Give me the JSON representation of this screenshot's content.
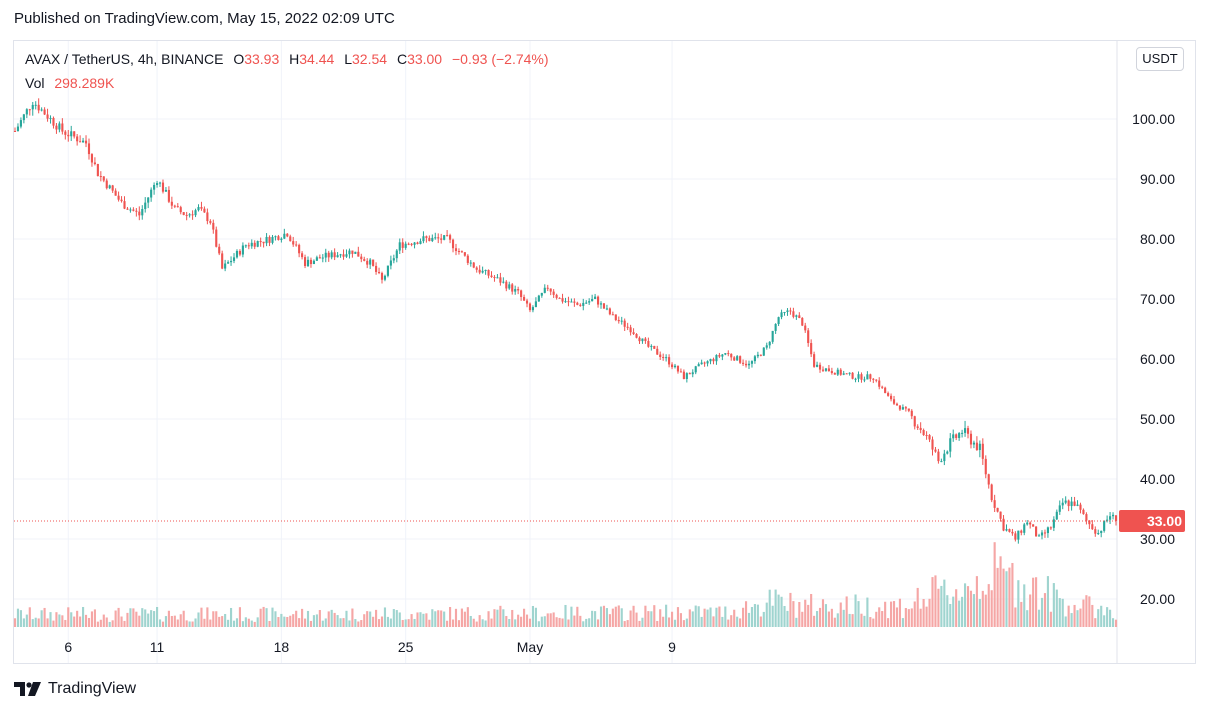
{
  "header": {
    "published_text": "Published on TradingView.com, May 15, 2022 02:09 UTC"
  },
  "legend": {
    "symbol": "AVAX / TetherUS, 4h, BINANCE",
    "open_label": "O",
    "open_value": "33.93",
    "high_label": "H",
    "high_value": "34.44",
    "low_label": "L",
    "low_value": "32.54",
    "close_label": "C",
    "close_value": "33.00",
    "change": "−0.93 (−2.74%)",
    "volume_label": "Vol",
    "volume_value": "298.289K"
  },
  "currency_button": "USDT",
  "price_badge": "33.00",
  "footer": {
    "brand": "TradingView"
  },
  "colors": {
    "up": "#26a69a",
    "down": "#ef5350",
    "vol_up": "#9fd4cf",
    "vol_down": "#f5a6a5",
    "grid": "#f0f3fa",
    "text": "#131722"
  },
  "chart_data": {
    "type": "candlestick",
    "y_axis": {
      "ticks": [
        "100.00",
        "90.00",
        "80.00",
        "70.00",
        "60.00",
        "50.00",
        "40.00",
        "30.00",
        "20.00"
      ],
      "range": [
        14,
        106
      ]
    },
    "x_axis": {
      "ticks": [
        "6",
        "11",
        "18",
        "25",
        "May",
        "9"
      ]
    },
    "last_price": 33.0,
    "keypoints": [
      [
        0,
        98
      ],
      [
        6,
        103
      ],
      [
        16,
        98
      ],
      [
        24,
        96
      ],
      [
        28,
        91
      ],
      [
        36,
        86
      ],
      [
        42,
        84
      ],
      [
        48,
        90
      ],
      [
        54,
        85
      ],
      [
        58,
        84
      ],
      [
        62,
        85
      ],
      [
        66,
        83
      ],
      [
        70,
        75
      ],
      [
        78,
        79
      ],
      [
        86,
        80
      ],
      [
        92,
        81
      ],
      [
        98,
        76
      ],
      [
        104,
        77
      ],
      [
        114,
        78
      ],
      [
        120,
        76
      ],
      [
        124,
        73
      ],
      [
        130,
        79
      ],
      [
        138,
        80
      ],
      [
        146,
        80
      ],
      [
        150,
        78
      ],
      [
        156,
        75
      ],
      [
        164,
        73
      ],
      [
        170,
        71
      ],
      [
        174,
        68
      ],
      [
        180,
        72
      ],
      [
        184,
        70
      ],
      [
        190,
        69
      ],
      [
        196,
        70
      ],
      [
        202,
        67
      ],
      [
        208,
        65
      ],
      [
        214,
        62
      ],
      [
        220,
        60
      ],
      [
        226,
        57
      ],
      [
        232,
        59
      ],
      [
        240,
        61
      ],
      [
        248,
        59
      ],
      [
        254,
        62
      ],
      [
        258,
        67
      ],
      [
        262,
        68
      ],
      [
        266,
        66
      ],
      [
        270,
        59
      ],
      [
        276,
        58
      ],
      [
        284,
        57
      ],
      [
        290,
        57
      ],
      [
        296,
        53
      ],
      [
        302,
        51
      ],
      [
        308,
        47
      ],
      [
        312,
        43
      ],
      [
        316,
        46
      ],
      [
        320,
        48
      ],
      [
        326,
        45
      ],
      [
        330,
        37
      ],
      [
        334,
        32
      ],
      [
        338,
        30
      ],
      [
        342,
        33
      ],
      [
        346,
        30
      ],
      [
        350,
        32
      ],
      [
        354,
        36
      ],
      [
        358,
        36
      ],
      [
        362,
        33
      ],
      [
        366,
        31
      ],
      [
        370,
        34
      ],
      [
        372,
        33
      ]
    ],
    "volume_profile": [
      [
        0,
        3
      ],
      [
        100,
        3
      ],
      [
        240,
        3.5
      ],
      [
        246,
        4.5
      ],
      [
        256,
        6
      ],
      [
        266,
        5
      ],
      [
        300,
        5
      ],
      [
        312,
        8
      ],
      [
        320,
        9
      ],
      [
        330,
        13
      ],
      [
        338,
        11
      ],
      [
        348,
        8
      ],
      [
        360,
        5
      ],
      [
        372,
        4
      ]
    ]
  }
}
